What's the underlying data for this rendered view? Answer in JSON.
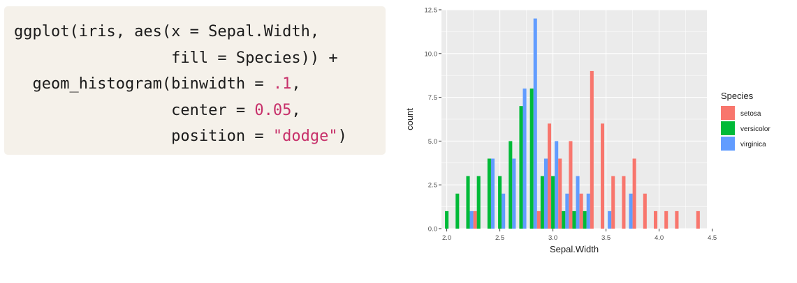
{
  "code": {
    "line1": "ggplot(iris, aes(x = Sepal.Width,",
    "line2": "                 fill = Species)) +",
    "line3_head": "  geom_histogram(binwidth = ",
    "line3_num": ".1",
    "line3_tail": ",",
    "line4_head": "                 center = ",
    "line4_num": "0.05",
    "line4_tail": ",",
    "line5_head": "                 position = ",
    "line5_str": "\"dodge\"",
    "line5_tail": ")"
  },
  "chart_data": {
    "type": "bar",
    "position": "dodge",
    "binwidth": 0.1,
    "xlabel": "Sepal.Width",
    "ylabel": "count",
    "xlim": [
      1.95,
      4.45
    ],
    "ylim": [
      0,
      12.5
    ],
    "x_ticks": [
      "2.0",
      "2.5",
      "3.0",
      "3.5",
      "4.0",
      "4.5"
    ],
    "x_tick_values": [
      2.0,
      2.5,
      3.0,
      3.5,
      4.0,
      4.5
    ],
    "y_ticks": [
      "0.0",
      "2.5",
      "5.0",
      "7.5",
      "10.0",
      "12.5"
    ],
    "y_tick_values": [
      0,
      2.5,
      5.0,
      7.5,
      10.0,
      12.5
    ],
    "grid": true,
    "background": "#ebebeb",
    "legend": {
      "title": "Species",
      "placement": "right",
      "items": [
        "setosa",
        "versicolor",
        "virginica"
      ]
    },
    "categories": [
      2.0,
      2.1,
      2.2,
      2.3,
      2.4,
      2.5,
      2.6,
      2.7,
      2.8,
      2.9,
      3.0,
      3.1,
      3.2,
      3.3,
      3.4,
      3.5,
      3.6,
      3.7,
      3.8,
      3.9,
      4.0,
      4.1,
      4.2,
      4.3,
      4.4
    ],
    "series": [
      {
        "name": "setosa",
        "color": "#F8766D",
        "values": [
          0,
          0,
          0,
          1,
          0,
          0,
          0,
          0,
          0,
          1,
          6,
          4,
          5,
          2,
          9,
          6,
          3,
          3,
          4,
          2,
          1,
          1,
          1,
          0,
          1
        ]
      },
      {
        "name": "versicolor",
        "color": "#00BA38",
        "values": [
          1,
          2,
          3,
          3,
          4,
          3,
          5,
          7,
          8,
          3,
          3,
          1,
          1,
          1,
          0,
          0,
          0,
          0,
          0,
          0,
          0,
          0,
          0,
          0,
          0
        ]
      },
      {
        "name": "virginica",
        "color": "#619CFF",
        "values": [
          0,
          0,
          1,
          0,
          4,
          2,
          4,
          8,
          12,
          4,
          5,
          2,
          3,
          2,
          0,
          1,
          0,
          2,
          0,
          0,
          0,
          0,
          0,
          0,
          0
        ]
      }
    ]
  }
}
